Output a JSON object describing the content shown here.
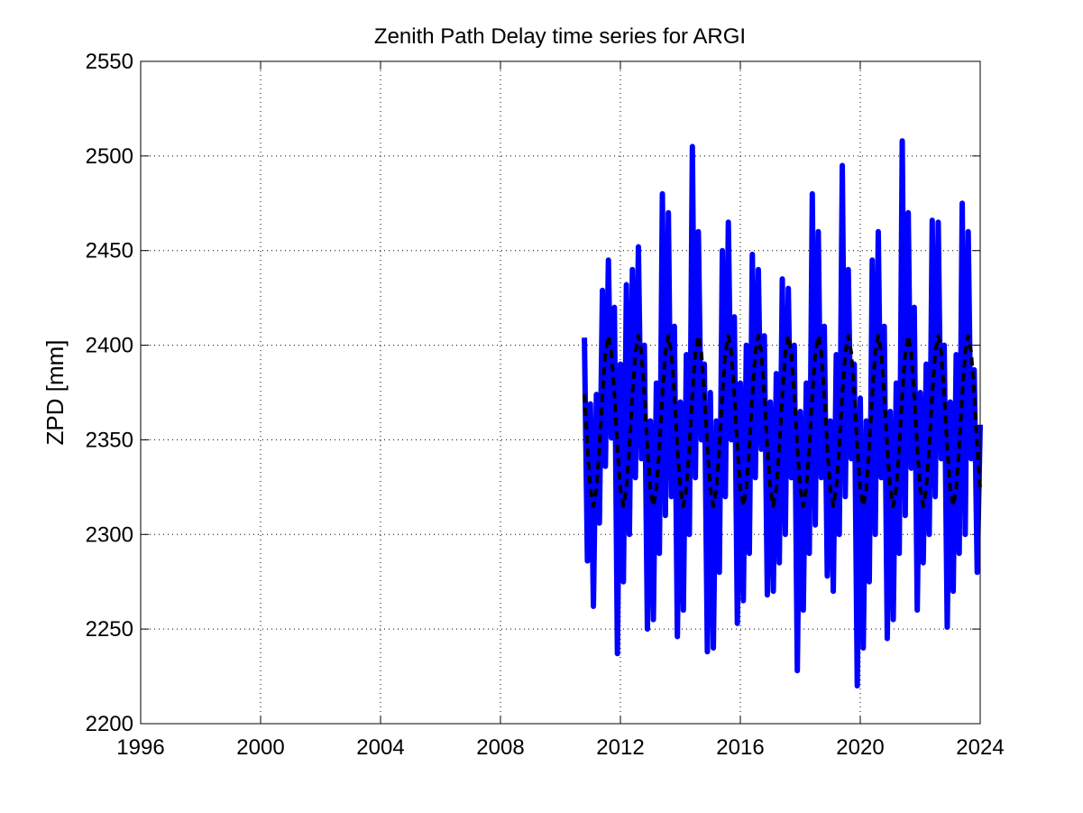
{
  "chart_data": {
    "type": "line",
    "title": "Zenith Path Delay time series for ARGI",
    "ylabel": "ZPD [mm]",
    "xlim": [
      1996,
      2024
    ],
    "xticks": [
      1996,
      2000,
      2004,
      2008,
      2012,
      2016,
      2020,
      2024
    ],
    "ylim": [
      2200,
      2550
    ],
    "yticks": [
      2200,
      2250,
      2300,
      2350,
      2400,
      2450,
      2500,
      2550
    ],
    "grid": true,
    "x": [
      2010.8,
      2010.9,
      2011.0,
      2011.1,
      2011.2,
      2011.3,
      2011.4,
      2011.5,
      2011.6,
      2011.7,
      2011.8,
      2011.9,
      2012.0,
      2012.1,
      2012.2,
      2012.3,
      2012.4,
      2012.5,
      2012.6,
      2012.7,
      2012.8,
      2012.9,
      2013.0,
      2013.1,
      2013.2,
      2013.3,
      2013.4,
      2013.5,
      2013.6,
      2013.7,
      2013.8,
      2013.9,
      2014.0,
      2014.1,
      2014.2,
      2014.3,
      2014.4,
      2014.5,
      2014.6,
      2014.7,
      2014.8,
      2014.9,
      2015.0,
      2015.1,
      2015.2,
      2015.3,
      2015.4,
      2015.5,
      2015.6,
      2015.7,
      2015.8,
      2015.9,
      2016.0,
      2016.1,
      2016.2,
      2016.3,
      2016.4,
      2016.5,
      2016.6,
      2016.7,
      2016.8,
      2016.9,
      2017.0,
      2017.1,
      2017.2,
      2017.3,
      2017.4,
      2017.5,
      2017.6,
      2017.7,
      2017.8,
      2017.9,
      2018.0,
      2018.1,
      2018.2,
      2018.3,
      2018.4,
      2018.5,
      2018.6,
      2018.7,
      2018.8,
      2018.9,
      2019.0,
      2019.1,
      2019.2,
      2019.3,
      2019.4,
      2019.5,
      2019.6,
      2019.7,
      2019.8,
      2019.9,
      2020.0,
      2020.1,
      2020.2,
      2020.3,
      2020.4,
      2020.5,
      2020.6,
      2020.7,
      2020.8,
      2020.9,
      2021.0,
      2021.1,
      2021.2,
      2021.3,
      2021.4,
      2021.5,
      2021.6,
      2021.7,
      2021.8,
      2021.9,
      2022.0,
      2022.1,
      2022.2,
      2022.3,
      2022.4,
      2022.5,
      2022.6,
      2022.7,
      2022.8,
      2022.9,
      2023.0,
      2023.1,
      2023.2,
      2023.3,
      2023.4,
      2023.5,
      2023.6,
      2023.7,
      2023.8,
      2023.9,
      2024.0
    ],
    "series": [
      {
        "color": "#0000ff",
        "linestyle": "solid",
        "values": [
          2404,
          2286,
          2369,
          2262,
          2374,
          2306,
          2429,
          2336,
          2445,
          2351,
          2420,
          2237,
          2390,
          2275,
          2432,
          2300,
          2440,
          2330,
          2452,
          2340,
          2400,
          2250,
          2360,
          2255,
          2380,
          2290,
          2480,
          2310,
          2470,
          2320,
          2410,
          2246,
          2370,
          2260,
          2395,
          2300,
          2505,
          2330,
          2460,
          2350,
          2390,
          2238,
          2375,
          2240,
          2360,
          2280,
          2450,
          2320,
          2465,
          2350,
          2415,
          2253,
          2380,
          2265,
          2400,
          2290,
          2448,
          2330,
          2440,
          2345,
          2405,
          2268,
          2370,
          2270,
          2385,
          2285,
          2435,
          2300,
          2430,
          2330,
          2400,
          2228,
          2365,
          2260,
          2380,
          2290,
          2480,
          2305,
          2460,
          2330,
          2410,
          2278,
          2360,
          2270,
          2395,
          2300,
          2495,
          2320,
          2440,
          2340,
          2390,
          2220,
          2372,
          2240,
          2360,
          2275,
          2445,
          2300,
          2460,
          2330,
          2410,
          2245,
          2365,
          2255,
          2380,
          2290,
          2508,
          2310,
          2470,
          2335,
          2420,
          2260,
          2375,
          2285,
          2390,
          2300,
          2466,
          2320,
          2465,
          2340,
          2400,
          2251,
          2370,
          2270,
          2395,
          2290,
          2475,
          2300,
          2460,
          2340,
          2387,
          2280,
          2358
        ]
      },
      {
        "color": "#000000",
        "linestyle": "dashed",
        "values": [
          2374,
          2346,
          2324,
          2315,
          2324,
          2346,
          2374,
          2396,
          2405,
          2396,
          2374,
          2346,
          2324,
          2315,
          2324,
          2346,
          2374,
          2396,
          2405,
          2396,
          2374,
          2346,
          2324,
          2315,
          2324,
          2346,
          2374,
          2396,
          2405,
          2396,
          2374,
          2346,
          2324,
          2315,
          2324,
          2346,
          2374,
          2396,
          2405,
          2396,
          2374,
          2346,
          2324,
          2315,
          2324,
          2346,
          2374,
          2396,
          2405,
          2396,
          2374,
          2346,
          2324,
          2315,
          2324,
          2346,
          2374,
          2396,
          2405,
          2396,
          2374,
          2346,
          2324,
          2315,
          2324,
          2346,
          2374,
          2396,
          2405,
          2396,
          2374,
          2346,
          2324,
          2315,
          2324,
          2346,
          2374,
          2396,
          2405,
          2396,
          2374,
          2346,
          2324,
          2315,
          2324,
          2346,
          2374,
          2396,
          2405,
          2396,
          2374,
          2346,
          2324,
          2315,
          2324,
          2346,
          2374,
          2396,
          2405,
          2396,
          2374,
          2346,
          2324,
          2315,
          2324,
          2346,
          2374,
          2396,
          2405,
          2396,
          2374,
          2346,
          2324,
          2315,
          2324,
          2346,
          2374,
          2396,
          2405,
          2396,
          2374,
          2346,
          2324,
          2315,
          2324,
          2346,
          2374,
          2396,
          2405,
          2396,
          2374,
          2346,
          2324
        ]
      }
    ]
  }
}
